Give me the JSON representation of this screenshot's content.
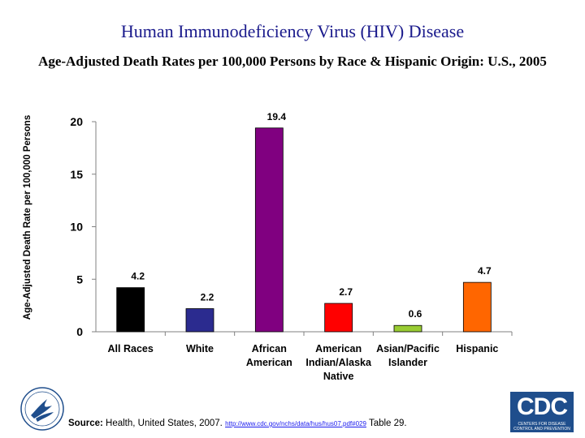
{
  "colors": {
    "title": "#1a1a8c",
    "link": "#1a1aee",
    "cdc_blue": "#1f4e8c"
  },
  "chart_data": {
    "type": "bar",
    "title": "Human Immunodeficiency Virus (HIV) Disease",
    "subtitle": "Age-Adjusted Death Rates per 100,000 Persons by Race & Hispanic Origin: U.S., 2005",
    "xlabel": "",
    "ylabel": "Age-Adjusted Death Rate per 100,000 Persons",
    "ylim": [
      0,
      20
    ],
    "yticks": [
      0,
      5,
      10,
      15,
      20
    ],
    "grid": false,
    "categories": [
      [
        "All Races"
      ],
      [
        "White"
      ],
      [
        "African",
        "American"
      ],
      [
        "American",
        "Indian/Alaska",
        "Native"
      ],
      [
        "Asian/Pacific",
        "Islander"
      ],
      [
        "Hispanic"
      ]
    ],
    "values": [
      4.2,
      2.2,
      19.4,
      2.7,
      0.6,
      4.7
    ],
    "value_labels": [
      "4.2",
      "2.2",
      "19.4",
      "2.7",
      "0.6",
      "4.7"
    ],
    "bar_colors": [
      "#000000",
      "#2b2b8f",
      "#800080",
      "#ff0000",
      "#99cc33",
      "#ff6600"
    ]
  },
  "footer": {
    "source_label": "Source:",
    "source_text": " Health, United States, 2007. ",
    "source_link": "http://www.cdc.gov/nchs/data/hus/hus07.pdf#029",
    "source_suffix": " Table 29."
  },
  "logos": {
    "hhs_icon": "hhs-eagle-seal-icon",
    "cdc_icon": "cdc-logo",
    "cdc_text": "CDC",
    "cdc_subtext": "CENTERS FOR DISEASE CONTROL AND PREVENTION"
  }
}
